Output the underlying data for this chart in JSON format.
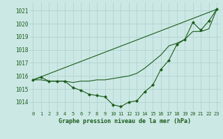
{
  "xlabel": "Graphe pression niveau de la mer (hPa)",
  "ylim": [
    1013.3,
    1021.6
  ],
  "xlim": [
    -0.5,
    23.5
  ],
  "yticks": [
    1014,
    1015,
    1016,
    1017,
    1018,
    1019,
    1020,
    1021
  ],
  "xticks": [
    0,
    1,
    2,
    3,
    4,
    5,
    6,
    7,
    8,
    9,
    10,
    11,
    12,
    13,
    14,
    15,
    16,
    17,
    18,
    19,
    20,
    21,
    22,
    23
  ],
  "bg_color": "#cce8e5",
  "grid_color": "#aacfcc",
  "line_color": "#1a5c1a",
  "series_main": {
    "x": [
      0,
      1,
      2,
      3,
      4,
      5,
      6,
      7,
      8,
      9,
      10,
      11,
      12,
      13,
      14,
      15,
      16,
      17,
      18,
      19,
      20,
      21,
      22,
      23
    ],
    "y": [
      1015.7,
      1015.9,
      1015.6,
      1015.6,
      1015.6,
      1015.1,
      1014.9,
      1014.6,
      1014.5,
      1014.4,
      1013.8,
      1013.65,
      1014.0,
      1014.1,
      1014.8,
      1015.3,
      1016.5,
      1017.2,
      1018.4,
      1018.8,
      1020.1,
      1019.5,
      1020.2,
      1021.1
    ]
  },
  "series_upper": {
    "x": [
      0,
      1,
      2,
      3,
      4,
      5,
      6,
      7,
      8,
      9,
      10,
      11,
      12,
      13,
      14,
      15,
      16,
      17,
      18,
      19,
      20,
      21,
      22,
      23
    ],
    "y": [
      1015.7,
      1015.7,
      1015.6,
      1015.6,
      1015.6,
      1015.5,
      1015.6,
      1015.6,
      1015.7,
      1015.7,
      1015.8,
      1015.9,
      1016.0,
      1016.2,
      1016.6,
      1017.1,
      1017.6,
      1018.3,
      1018.5,
      1018.8,
      1019.4,
      1019.4,
      1019.6,
      1021.1
    ]
  },
  "series_diagonal": {
    "x": [
      0,
      23
    ],
    "y": [
      1015.7,
      1021.1
    ]
  }
}
